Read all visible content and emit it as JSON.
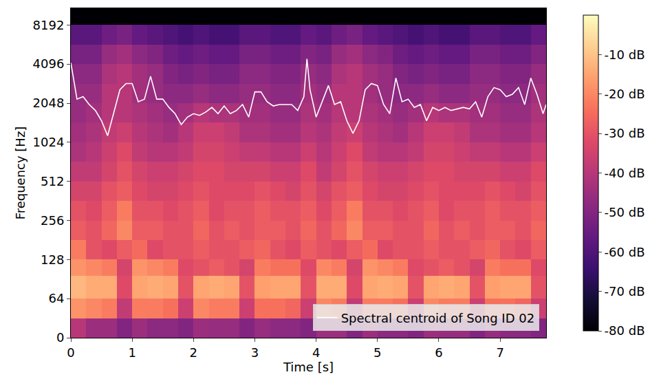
{
  "chart_data": {
    "type": "heatmap",
    "xlabel": "Time [s]",
    "ylabel": "Frequency [Hz]",
    "xlim": [
      0,
      7.75
    ],
    "ylim": [
      0,
      11025
    ],
    "xticks": [
      0,
      1,
      2,
      3,
      4,
      5,
      6,
      7
    ],
    "yticks": [
      0,
      64,
      128,
      256,
      512,
      1024,
      2048,
      4096,
      8192
    ],
    "log": "y",
    "grid": false,
    "legend": "lower right",
    "time_edges": [
      0,
      0.25,
      0.5,
      0.75,
      1,
      1.25,
      1.5,
      1.75,
      2,
      2.25,
      2.5,
      2.75,
      3,
      3.25,
      3.5,
      3.75,
      4,
      4.25,
      4.5,
      4.75,
      5,
      5.25,
      5.5,
      5.75,
      6,
      6.25,
      6.5,
      6.75,
      7,
      7.25,
      7.5,
      7.75
    ],
    "freq_edges": [
      0,
      32,
      64,
      96,
      128,
      181,
      256,
      362,
      512,
      724,
      1024,
      1448,
      2048,
      2896,
      4096,
      5793,
      8192,
      11025
    ],
    "cells": [
      [
        -40,
        -45,
        -45,
        -50,
        -45,
        -48,
        -48,
        -50,
        -45,
        -46,
        -46,
        -50,
        -46,
        -48,
        -48,
        -50,
        -45,
        -45,
        -50,
        -45,
        -48,
        -48,
        -50,
        -45,
        -46,
        -46,
        -50,
        -46,
        -48,
        -48,
        -50
      ],
      [
        -18,
        -20,
        -22,
        -38,
        -22,
        -22,
        -24,
        -36,
        -20,
        -22,
        -22,
        -36,
        -24,
        -24,
        -26,
        -36,
        -20,
        -22,
        -38,
        -22,
        -22,
        -24,
        -36,
        -20,
        -22,
        -22,
        -36,
        -24,
        -24,
        -26,
        -36
      ],
      [
        -12,
        -14,
        -14,
        -32,
        -15,
        -14,
        -15,
        -30,
        -15,
        -14,
        -15,
        -30,
        -16,
        -15,
        -15,
        -30,
        -14,
        -14,
        -32,
        -15,
        -14,
        -15,
        -30,
        -15,
        -14,
        -15,
        -30,
        -16,
        -15,
        -15,
        -30
      ],
      [
        -18,
        -20,
        -22,
        -34,
        -18,
        -20,
        -22,
        -32,
        -30,
        -28,
        -30,
        -34,
        -22,
        -24,
        -24,
        -32,
        -20,
        -22,
        -34,
        -18,
        -20,
        -22,
        -32,
        -30,
        -28,
        -30,
        -34,
        -22,
        -24,
        -24,
        -32
      ],
      [
        -22,
        -30,
        -32,
        -28,
        -25,
        -32,
        -30,
        -30,
        -28,
        -30,
        -30,
        -28,
        -26,
        -30,
        -32,
        -28,
        -30,
        -32,
        -28,
        -25,
        -32,
        -30,
        -30,
        -28,
        -30,
        -30,
        -28,
        -26,
        -30,
        -32,
        -28
      ],
      [
        -28,
        -30,
        -26,
        -20,
        -28,
        -28,
        -30,
        -30,
        -26,
        -30,
        -28,
        -30,
        -28,
        -28,
        -30,
        -26,
        -30,
        -26,
        -20,
        -28,
        -28,
        -30,
        -30,
        -26,
        -30,
        -28,
        -30,
        -28,
        -28,
        -30,
        -26
      ],
      [
        -30,
        -32,
        -28,
        -22,
        -30,
        -30,
        -32,
        -30,
        -28,
        -32,
        -30,
        -30,
        -28,
        -30,
        -30,
        -28,
        -32,
        -28,
        -22,
        -30,
        -30,
        -32,
        -30,
        -28,
        -32,
        -30,
        -30,
        -28,
        -30,
        -30,
        -28
      ],
      [
        -34,
        -34,
        -30,
        -28,
        -32,
        -34,
        -34,
        -32,
        -30,
        -32,
        -32,
        -32,
        -30,
        -32,
        -34,
        -30,
        -34,
        -30,
        -28,
        -32,
        -34,
        -34,
        -32,
        -30,
        -32,
        -32,
        -32,
        -30,
        -32,
        -34,
        -30
      ],
      [
        -38,
        -38,
        -34,
        -30,
        -34,
        -36,
        -36,
        -34,
        -32,
        -32,
        -34,
        -34,
        -34,
        -36,
        -36,
        -32,
        -38,
        -34,
        -30,
        -34,
        -36,
        -36,
        -34,
        -32,
        -32,
        -34,
        -34,
        -34,
        -36,
        -36,
        -32
      ],
      [
        -42,
        -40,
        -36,
        -32,
        -38,
        -40,
        -40,
        -38,
        -34,
        -34,
        -36,
        -38,
        -38,
        -40,
        -40,
        -36,
        -40,
        -36,
        -32,
        -38,
        -40,
        -40,
        -38,
        -34,
        -34,
        -36,
        -38,
        -38,
        -40,
        -40,
        -36
      ],
      [
        -44,
        -42,
        -38,
        -36,
        -40,
        -42,
        -44,
        -40,
        -36,
        -36,
        -38,
        -42,
        -42,
        -44,
        -44,
        -40,
        -42,
        -38,
        -36,
        -40,
        -42,
        -44,
        -40,
        -36,
        -36,
        -38,
        -42,
        -42,
        -44,
        -44,
        -40
      ],
      [
        -46,
        -44,
        -40,
        -40,
        -42,
        -44,
        -46,
        -44,
        -40,
        -42,
        -42,
        -44,
        -44,
        -46,
        -46,
        -42,
        -44,
        -40,
        -40,
        -42,
        -44,
        -46,
        -44,
        -40,
        -42,
        -42,
        -44,
        -44,
        -46,
        -46,
        -42
      ],
      [
        -46,
        -46,
        -40,
        -40,
        -44,
        -46,
        -48,
        -48,
        -46,
        -48,
        -48,
        -46,
        -46,
        -48,
        -48,
        -44,
        -46,
        -40,
        -40,
        -44,
        -46,
        -48,
        -48,
        -46,
        -48,
        -48,
        -46,
        -46,
        -48,
        -48,
        -44
      ],
      [
        -48,
        -48,
        -42,
        -40,
        -44,
        -46,
        -50,
        -52,
        -50,
        -52,
        -52,
        -48,
        -48,
        -50,
        -50,
        -46,
        -48,
        -42,
        -40,
        -44,
        -46,
        -50,
        -52,
        -50,
        -52,
        -52,
        -48,
        -48,
        -50,
        -50,
        -46
      ],
      [
        -52,
        -52,
        -46,
        -44,
        -48,
        -50,
        -54,
        -56,
        -54,
        -56,
        -56,
        -52,
        -52,
        -54,
        -54,
        -50,
        -52,
        -46,
        -44,
        -48,
        -50,
        -54,
        -56,
        -54,
        -56,
        -56,
        -52,
        -52,
        -54,
        -54,
        -50
      ],
      [
        -58,
        -58,
        -54,
        -52,
        -56,
        -58,
        -60,
        -62,
        -60,
        -62,
        -62,
        -58,
        -58,
        -60,
        -60,
        -56,
        -58,
        -54,
        -52,
        -56,
        -58,
        -60,
        -62,
        -60,
        -62,
        -62,
        -58,
        -58,
        -60,
        -60,
        -56
      ],
      [
        -80,
        -80,
        -80,
        -80,
        -80,
        -80,
        -80,
        -80,
        -80,
        -80,
        -80,
        -80,
        -80,
        -80,
        -80,
        -80,
        -80,
        -80,
        -80,
        -80,
        -80,
        -80,
        -80,
        -80,
        -80,
        -80,
        -80,
        -80,
        -80,
        -80,
        -80
      ]
    ],
    "colorbar_range": [
      -80,
      0
    ],
    "colorbar_ticks": [
      {
        "value": -10,
        "label": "-10 dB"
      },
      {
        "value": -20,
        "label": "-20 dB"
      },
      {
        "value": -30,
        "label": "-30 dB"
      },
      {
        "value": -40,
        "label": "-40 dB"
      },
      {
        "value": -50,
        "label": "-50 dB"
      },
      {
        "value": -60,
        "label": "-60 dB"
      },
      {
        "value": -70,
        "label": "-70 dB"
      },
      {
        "value": -80,
        "label": "-80 dB"
      }
    ],
    "series": [
      {
        "name": "Spectral centroid of Song ID 02",
        "type": "line",
        "color": "#ffffff",
        "line_style": "solid",
        "x": [
          0,
          0.1,
          0.2,
          0.3,
          0.4,
          0.5,
          0.6,
          0.7,
          0.8,
          0.9,
          1.0,
          1.1,
          1.2,
          1.3,
          1.4,
          1.5,
          1.6,
          1.7,
          1.8,
          1.9,
          2.0,
          2.1,
          2.2,
          2.3,
          2.4,
          2.5,
          2.6,
          2.7,
          2.8,
          2.9,
          3.0,
          3.1,
          3.2,
          3.3,
          3.4,
          3.5,
          3.6,
          3.7,
          3.8,
          3.85,
          3.9,
          4.0,
          4.1,
          4.2,
          4.3,
          4.4,
          4.5,
          4.6,
          4.7,
          4.8,
          4.9,
          5.0,
          5.1,
          5.2,
          5.3,
          5.4,
          5.5,
          5.6,
          5.7,
          5.8,
          5.9,
          6.0,
          6.1,
          6.2,
          6.3,
          6.4,
          6.5,
          6.6,
          6.7,
          6.8,
          6.9,
          7.0,
          7.1,
          7.2,
          7.3,
          7.4,
          7.5,
          7.6,
          7.7,
          7.75
        ],
        "values": [
          4200,
          2200,
          2300,
          2000,
          1800,
          1500,
          1150,
          1700,
          2600,
          2900,
          2900,
          2100,
          2200,
          3300,
          2200,
          2200,
          1900,
          1700,
          1400,
          1600,
          1700,
          1650,
          1750,
          1900,
          1700,
          1950,
          1700,
          1800,
          2000,
          1600,
          2500,
          2500,
          2100,
          1950,
          2000,
          2000,
          2000,
          1800,
          2300,
          4500,
          2600,
          1600,
          2100,
          2800,
          2000,
          2100,
          1500,
          1200,
          1500,
          2600,
          2900,
          2800,
          2000,
          1700,
          3200,
          2100,
          2200,
          1900,
          2000,
          1500,
          1900,
          1800,
          1900,
          1800,
          1850,
          1900,
          1850,
          2100,
          1600,
          2300,
          2700,
          2600,
          2300,
          2400,
          2700,
          2000,
          3200,
          2400,
          1700,
          2000
        ]
      }
    ]
  }
}
